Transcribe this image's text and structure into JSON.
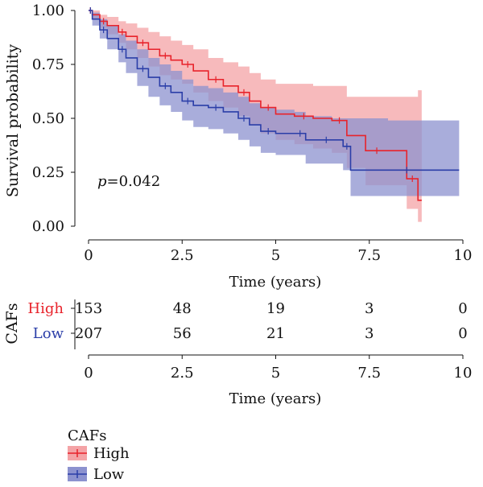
{
  "chart_data": [
    {
      "type": "line",
      "subtype": "kaplan-meier",
      "xlabel": "Time (years)",
      "ylabel": "Survival probability",
      "x_ticks": [
        "0",
        "2.5",
        "5",
        "7.5",
        "10"
      ],
      "y_ticks": [
        "0.00",
        "0.25",
        "0.50",
        "0.75",
        "1.00"
      ],
      "xlim": [
        0,
        10
      ],
      "ylim": [
        0,
        1
      ],
      "grid": false,
      "annotation_p_label": "p",
      "annotation_p_value": "=0.042",
      "series": [
        {
          "name": "High",
          "color": "#e8232b",
          "ci_color": "#f4a3a6",
          "x": [
            0,
            0.1,
            0.3,
            0.5,
            0.8,
            1.0,
            1.3,
            1.6,
            1.9,
            2.2,
            2.5,
            2.8,
            3.2,
            3.6,
            4.0,
            4.3,
            4.6,
            5.0,
            5.5,
            6.0,
            6.5,
            6.9,
            7.4,
            8.0,
            8.5,
            8.8,
            8.9
          ],
          "y": [
            1.0,
            0.98,
            0.95,
            0.93,
            0.9,
            0.88,
            0.85,
            0.82,
            0.79,
            0.77,
            0.75,
            0.72,
            0.68,
            0.65,
            0.62,
            0.58,
            0.55,
            0.52,
            0.51,
            0.5,
            0.49,
            0.42,
            0.35,
            0.35,
            0.22,
            0.12,
            0.12
          ],
          "ci_upper": [
            1.0,
            1.0,
            0.98,
            0.97,
            0.95,
            0.94,
            0.92,
            0.9,
            0.88,
            0.86,
            0.84,
            0.82,
            0.78,
            0.76,
            0.74,
            0.71,
            0.68,
            0.66,
            0.66,
            0.65,
            0.65,
            0.6,
            0.6,
            0.6,
            0.6,
            0.63,
            0.63
          ],
          "ci_lower": [
            1.0,
            0.96,
            0.92,
            0.89,
            0.85,
            0.82,
            0.78,
            0.74,
            0.7,
            0.68,
            0.66,
            0.62,
            0.58,
            0.55,
            0.51,
            0.47,
            0.43,
            0.4,
            0.38,
            0.36,
            0.34,
            0.27,
            0.19,
            0.19,
            0.08,
            0.02,
            0.02
          ]
        },
        {
          "name": "Low",
          "color": "#2b3ea8",
          "ci_color": "#8c92cf",
          "x": [
            0,
            0.1,
            0.3,
            0.5,
            0.8,
            1.0,
            1.3,
            1.6,
            1.9,
            2.2,
            2.5,
            2.8,
            3.2,
            3.6,
            4.0,
            4.3,
            4.6,
            5.0,
            5.5,
            5.8,
            6.2,
            6.5,
            6.8,
            7.0,
            8.0,
            9.0,
            9.9
          ],
          "y": [
            1.0,
            0.96,
            0.91,
            0.87,
            0.82,
            0.78,
            0.73,
            0.69,
            0.65,
            0.62,
            0.58,
            0.56,
            0.55,
            0.53,
            0.5,
            0.47,
            0.44,
            0.43,
            0.43,
            0.4,
            0.4,
            0.4,
            0.37,
            0.26,
            0.26,
            0.26,
            0.26
          ],
          "ci_upper": [
            1.0,
            0.99,
            0.96,
            0.93,
            0.89,
            0.86,
            0.82,
            0.78,
            0.75,
            0.72,
            0.68,
            0.65,
            0.64,
            0.62,
            0.6,
            0.57,
            0.55,
            0.54,
            0.53,
            0.51,
            0.51,
            0.5,
            0.5,
            0.5,
            0.49,
            0.49,
            0.49
          ],
          "ci_lower": [
            1.0,
            0.93,
            0.87,
            0.82,
            0.76,
            0.71,
            0.65,
            0.6,
            0.56,
            0.53,
            0.49,
            0.46,
            0.45,
            0.43,
            0.4,
            0.37,
            0.34,
            0.33,
            0.33,
            0.29,
            0.29,
            0.29,
            0.26,
            0.14,
            0.14,
            0.14,
            0.14
          ]
        }
      ]
    },
    {
      "type": "table",
      "title": "",
      "row_group_label": "CAFs",
      "xlabel": "Time (years)",
      "x_ticks": [
        "0",
        "2.5",
        "5",
        "7.5",
        "10"
      ],
      "rows": [
        {
          "label": "High",
          "color": "#e8232b",
          "values": [
            "153",
            "48",
            "19",
            "3",
            "0"
          ]
        },
        {
          "label": "Low",
          "color": "#2b3ea8",
          "values": [
            "207",
            "56",
            "21",
            "3",
            "0"
          ]
        }
      ]
    }
  ],
  "legend": {
    "title": "CAFs",
    "placement": "bottom-left",
    "items": [
      {
        "label": "High",
        "color": "#e8232b",
        "fill": "#f4a3a6"
      },
      {
        "label": "Low",
        "color": "#2b3ea8",
        "fill": "#8c92cf"
      }
    ]
  }
}
